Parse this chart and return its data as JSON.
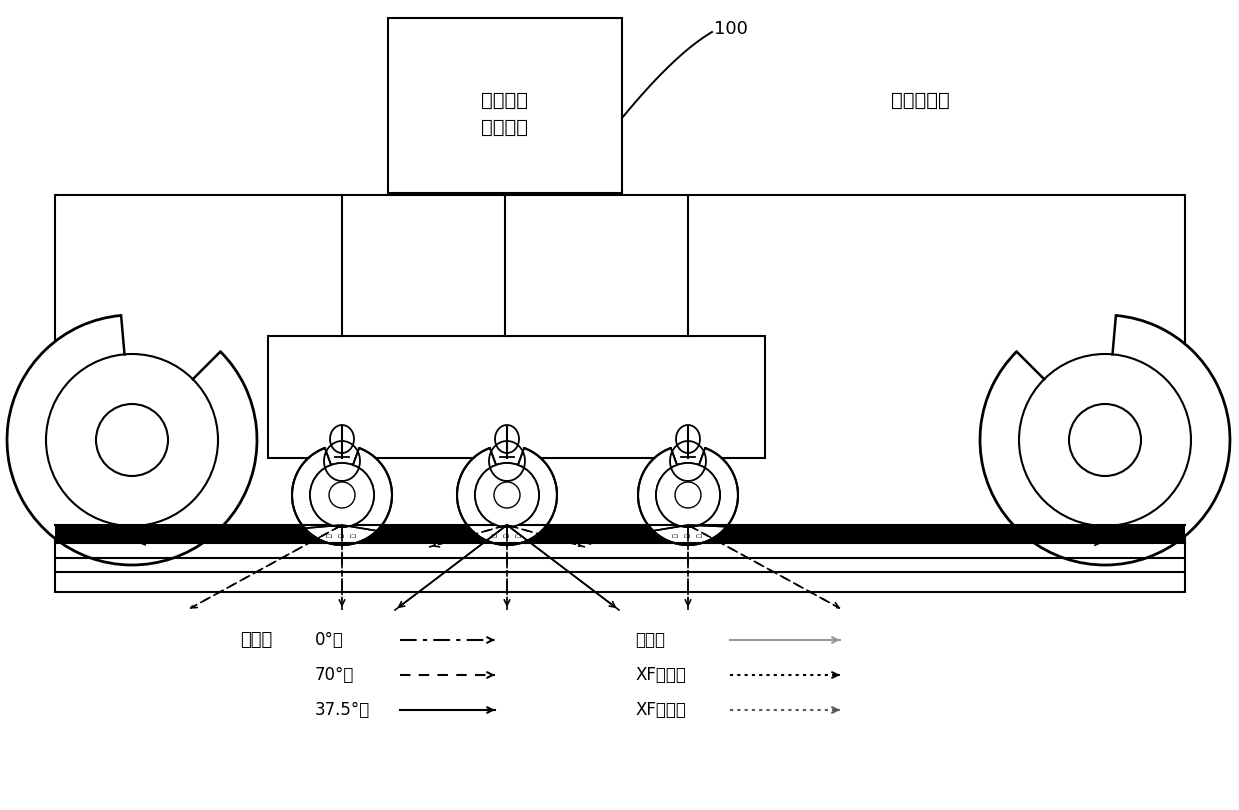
{
  "bg_color": "#ffffff",
  "label_100": "100",
  "label_system_line1": "鉢轨探伤",
  "label_system_line2": "检测系统",
  "label_vehicle": "鉢轨探伤车",
  "legend_title": "图例：",
  "legend_0deg": "0°：",
  "legend_70deg": "70°：",
  "legend_375deg": "37.5°：",
  "legend_side": "侧打：",
  "legend_xf1": "XF一次：",
  "legend_xf2": "XF二次：",
  "fig_w": 12.39,
  "fig_h": 8.1,
  "dpi": 100
}
